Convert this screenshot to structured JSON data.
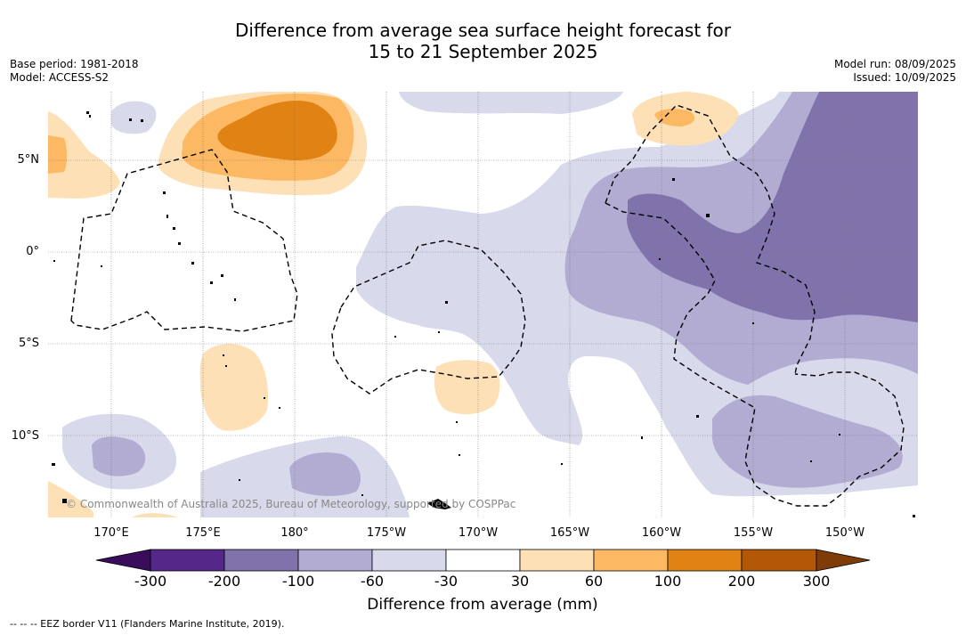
{
  "title": {
    "line1": "Difference from average sea surface height forecast for",
    "line2": "15 to 21 September 2025"
  },
  "meta": {
    "base_period": "Base period: 1981-2018",
    "model": "Model: ACCESS-S2",
    "model_run": "Model run: 08/09/2025",
    "issued": "Issued: 10/09/2025"
  },
  "map": {
    "lat_labels": [
      "5°N",
      "0°",
      "5°S",
      "10°S"
    ],
    "lon_labels": [
      "170°E",
      "175°E",
      "180°",
      "175°W",
      "170°W",
      "165°W",
      "160°W",
      "155°W",
      "150°W"
    ],
    "copyright": "© Commonwealth of Australia 2025, Bureau of Meteorology, supported by COSPPac"
  },
  "colorbar": {
    "labels": [
      "-300",
      "-200",
      "-100",
      "-60",
      "-30",
      "30",
      "60",
      "100",
      "200",
      "300"
    ],
    "colors": {
      "below_min": "#3a0d5c",
      "m300_m200": "#542788",
      "m200_m100": "#8073ac",
      "m100_m60": "#b2abd2",
      "m60_m30": "#d8daeb",
      "m30_30": "#ffffff",
      "p30_60": "#fee0b6",
      "p60_100": "#fdb863",
      "p100_200": "#e08214",
      "p200_300": "#b35806",
      "above_max": "#7f3b08"
    },
    "title": "Difference from average (mm)"
  },
  "footer": {
    "legend": "--  --  -- EEZ border V11 (Flanders Marine Institute, 2019)."
  }
}
